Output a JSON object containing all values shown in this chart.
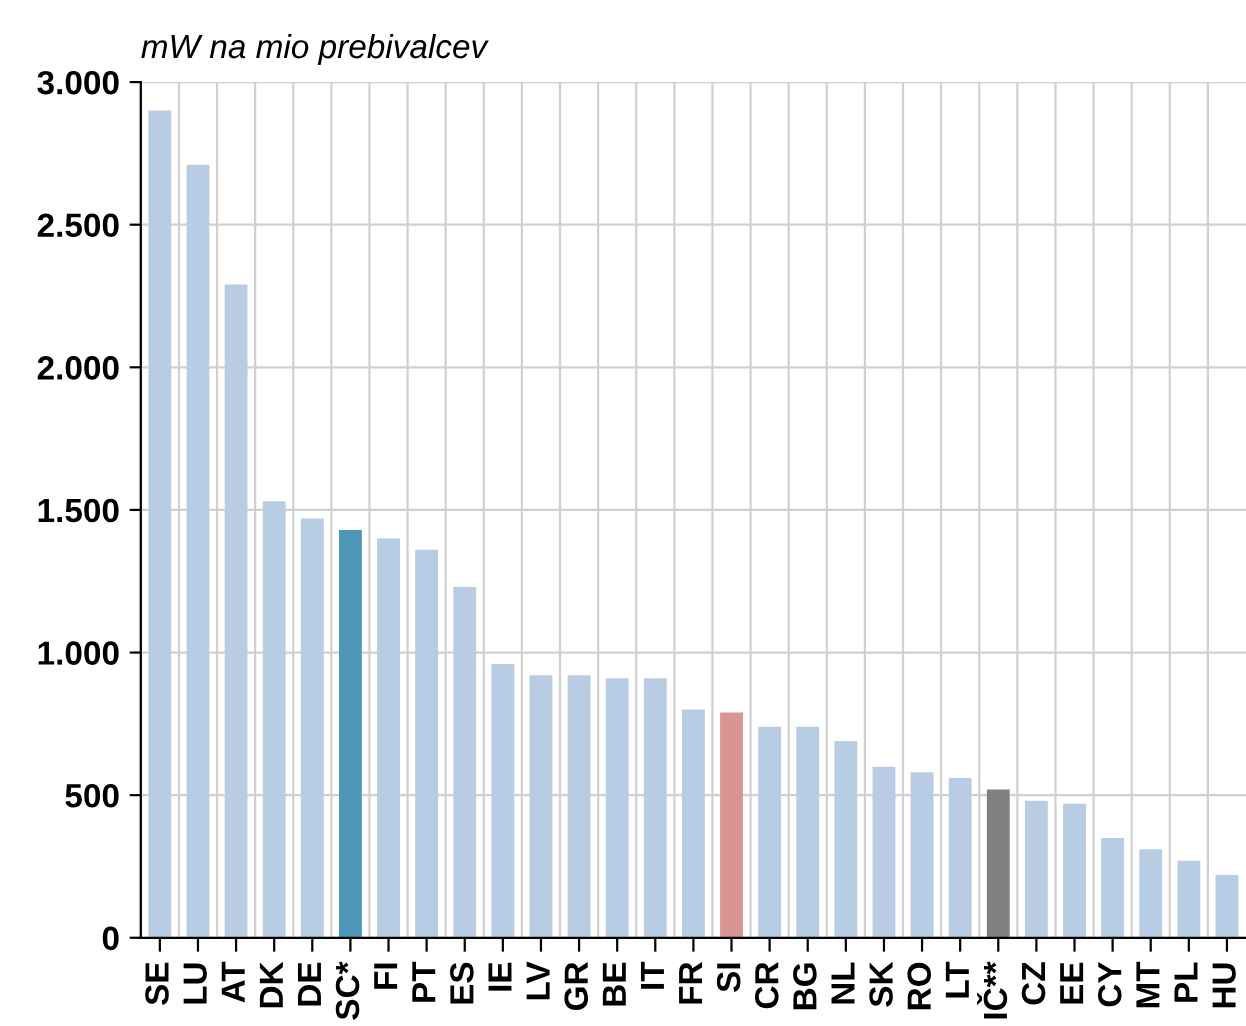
{
  "chart_data": {
    "type": "bar",
    "ylabel": "mW na mio prebivalcev",
    "categories": [
      "SE",
      "LU",
      "AT",
      "DK",
      "DE",
      "SC*",
      "FI",
      "PT",
      "ES",
      "IE",
      "LV",
      "GR",
      "BE",
      "IT",
      "FR",
      "SI",
      "CR",
      "BG",
      "NL",
      "SK",
      "RO",
      "LT",
      "IČ**",
      "CZ",
      "EE",
      "CY",
      "MT",
      "PL",
      "HU"
    ],
    "values": [
      2900,
      2710,
      2290,
      1530,
      1470,
      1430,
      1400,
      1360,
      1230,
      960,
      920,
      920,
      910,
      910,
      800,
      790,
      740,
      740,
      690,
      600,
      580,
      560,
      520,
      480,
      470,
      350,
      310,
      270,
      220
    ],
    "colors": [
      "#b8cce4",
      "#b8cce4",
      "#b8cce4",
      "#b8cce4",
      "#b8cce4",
      "#4f97b7",
      "#b8cce4",
      "#b8cce4",
      "#b8cce4",
      "#b8cce4",
      "#b8cce4",
      "#b8cce4",
      "#b8cce4",
      "#b8cce4",
      "#b8cce4",
      "#d99594",
      "#b8cce4",
      "#b8cce4",
      "#b8cce4",
      "#b8cce4",
      "#b8cce4",
      "#b8cce4",
      "#808080",
      "#b8cce4",
      "#b8cce4",
      "#b8cce4",
      "#b8cce4",
      "#b8cce4",
      "#b8cce4"
    ],
    "ylim": [
      0,
      3000
    ],
    "yticks": [
      0,
      500,
      {
        "value": 1000,
        "label": "1.000"
      },
      {
        "value": 1500,
        "label": "1.500"
      },
      {
        "value": 2000,
        "label": "2.000"
      },
      {
        "value": 2500,
        "label": "2.500"
      },
      {
        "value": 3000,
        "label": "3.000"
      }
    ],
    "grid": true
  }
}
